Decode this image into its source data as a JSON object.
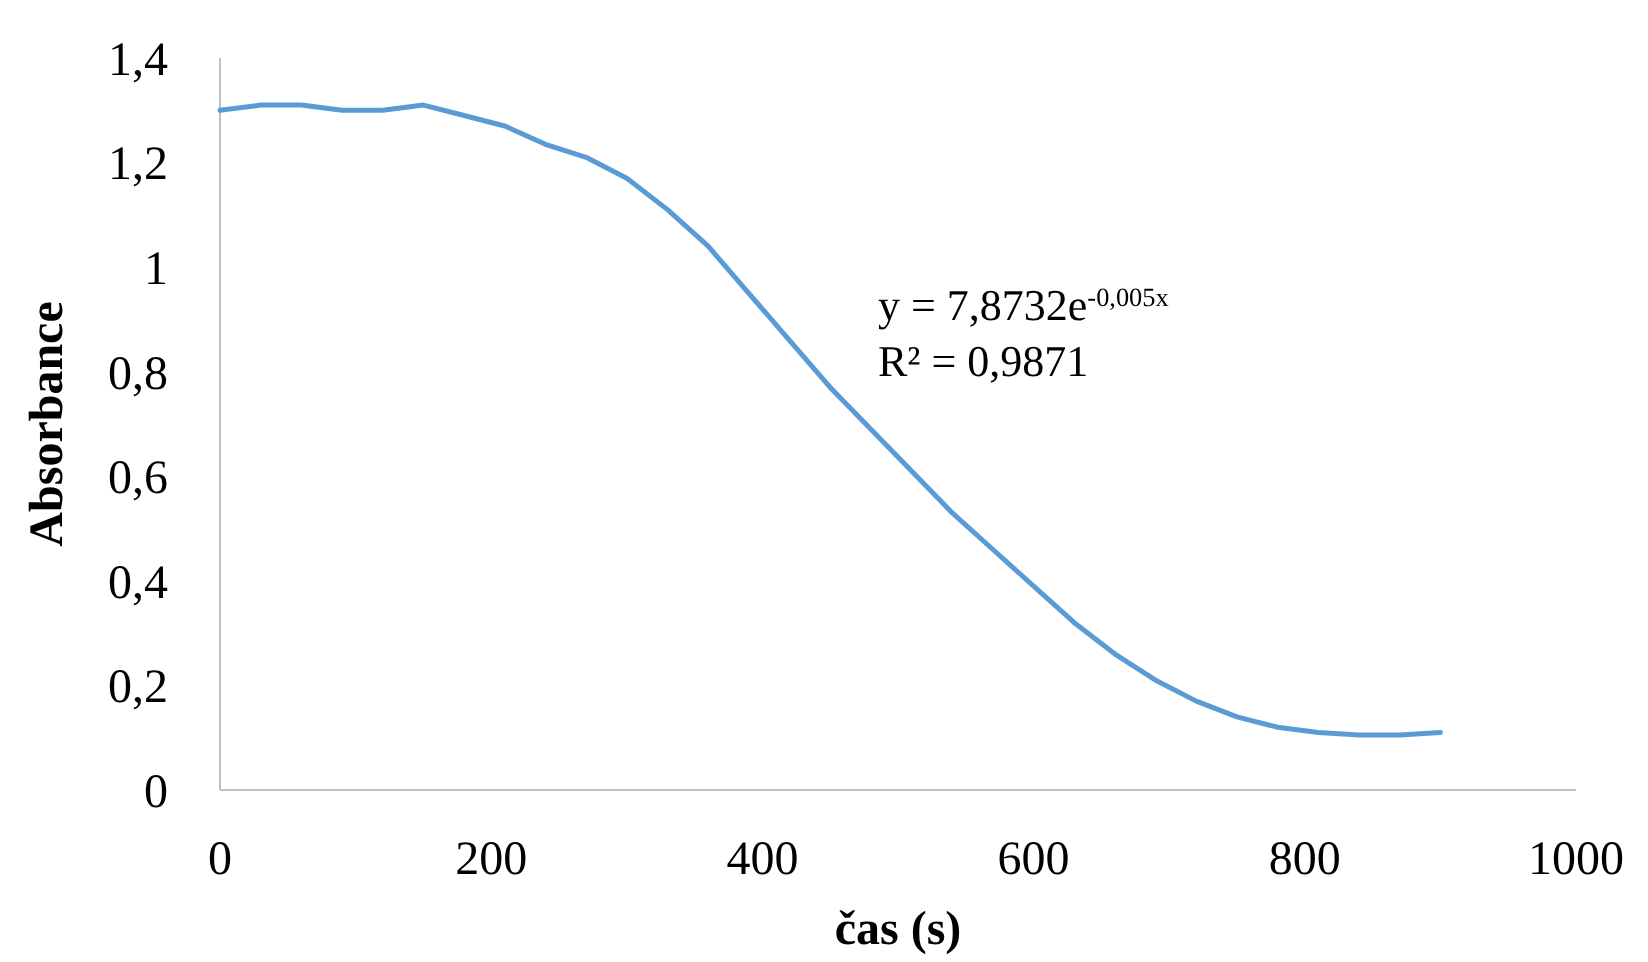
{
  "chart_data": {
    "type": "line",
    "xlabel": "čas (s)",
    "ylabel": "Absorbance",
    "annotations": [
      "y = 7,8732e$^{-0,005x}$",
      "R² = 0,9871"
    ],
    "series": [
      {
        "color": "#5b9bd5",
        "x": [
          0,
          30,
          60,
          90,
          120,
          150,
          180,
          210,
          240,
          270,
          300,
          330,
          360,
          390,
          420,
          450,
          480,
          510,
          540,
          570,
          600,
          630,
          660,
          690,
          720,
          750,
          780,
          810,
          840,
          870,
          900
        ],
        "values": [
          1.3,
          1.31,
          1.31,
          1.3,
          1.3,
          1.31,
          1.29,
          1.27,
          1.235,
          1.21,
          1.17,
          1.11,
          1.04,
          0.95,
          0.86,
          0.77,
          0.69,
          0.61,
          0.53,
          0.46,
          0.39,
          0.32,
          0.26,
          0.21,
          0.17,
          0.14,
          0.12,
          0.11,
          0.105,
          0.105,
          0.11
        ]
      }
    ],
    "xlim": [
      0,
      1000
    ],
    "xticks": [
      0,
      200,
      400,
      600,
      800,
      1000
    ],
    "ylim": [
      0,
      1.4
    ],
    "yticks": [
      0,
      {
        "value": 0.2,
        "label": "0,2"
      },
      {
        "value": 0.4,
        "label": "0,4"
      },
      {
        "value": 0.6,
        "label": "0,6"
      },
      {
        "value": 0.8,
        "label": "0,8"
      },
      1,
      {
        "value": 1.2,
        "label": "1,2"
      },
      {
        "value": 1.4,
        "label": "1,4"
      }
    ],
    "grid": false,
    "marker": "none",
    "line_style": "solid"
  }
}
